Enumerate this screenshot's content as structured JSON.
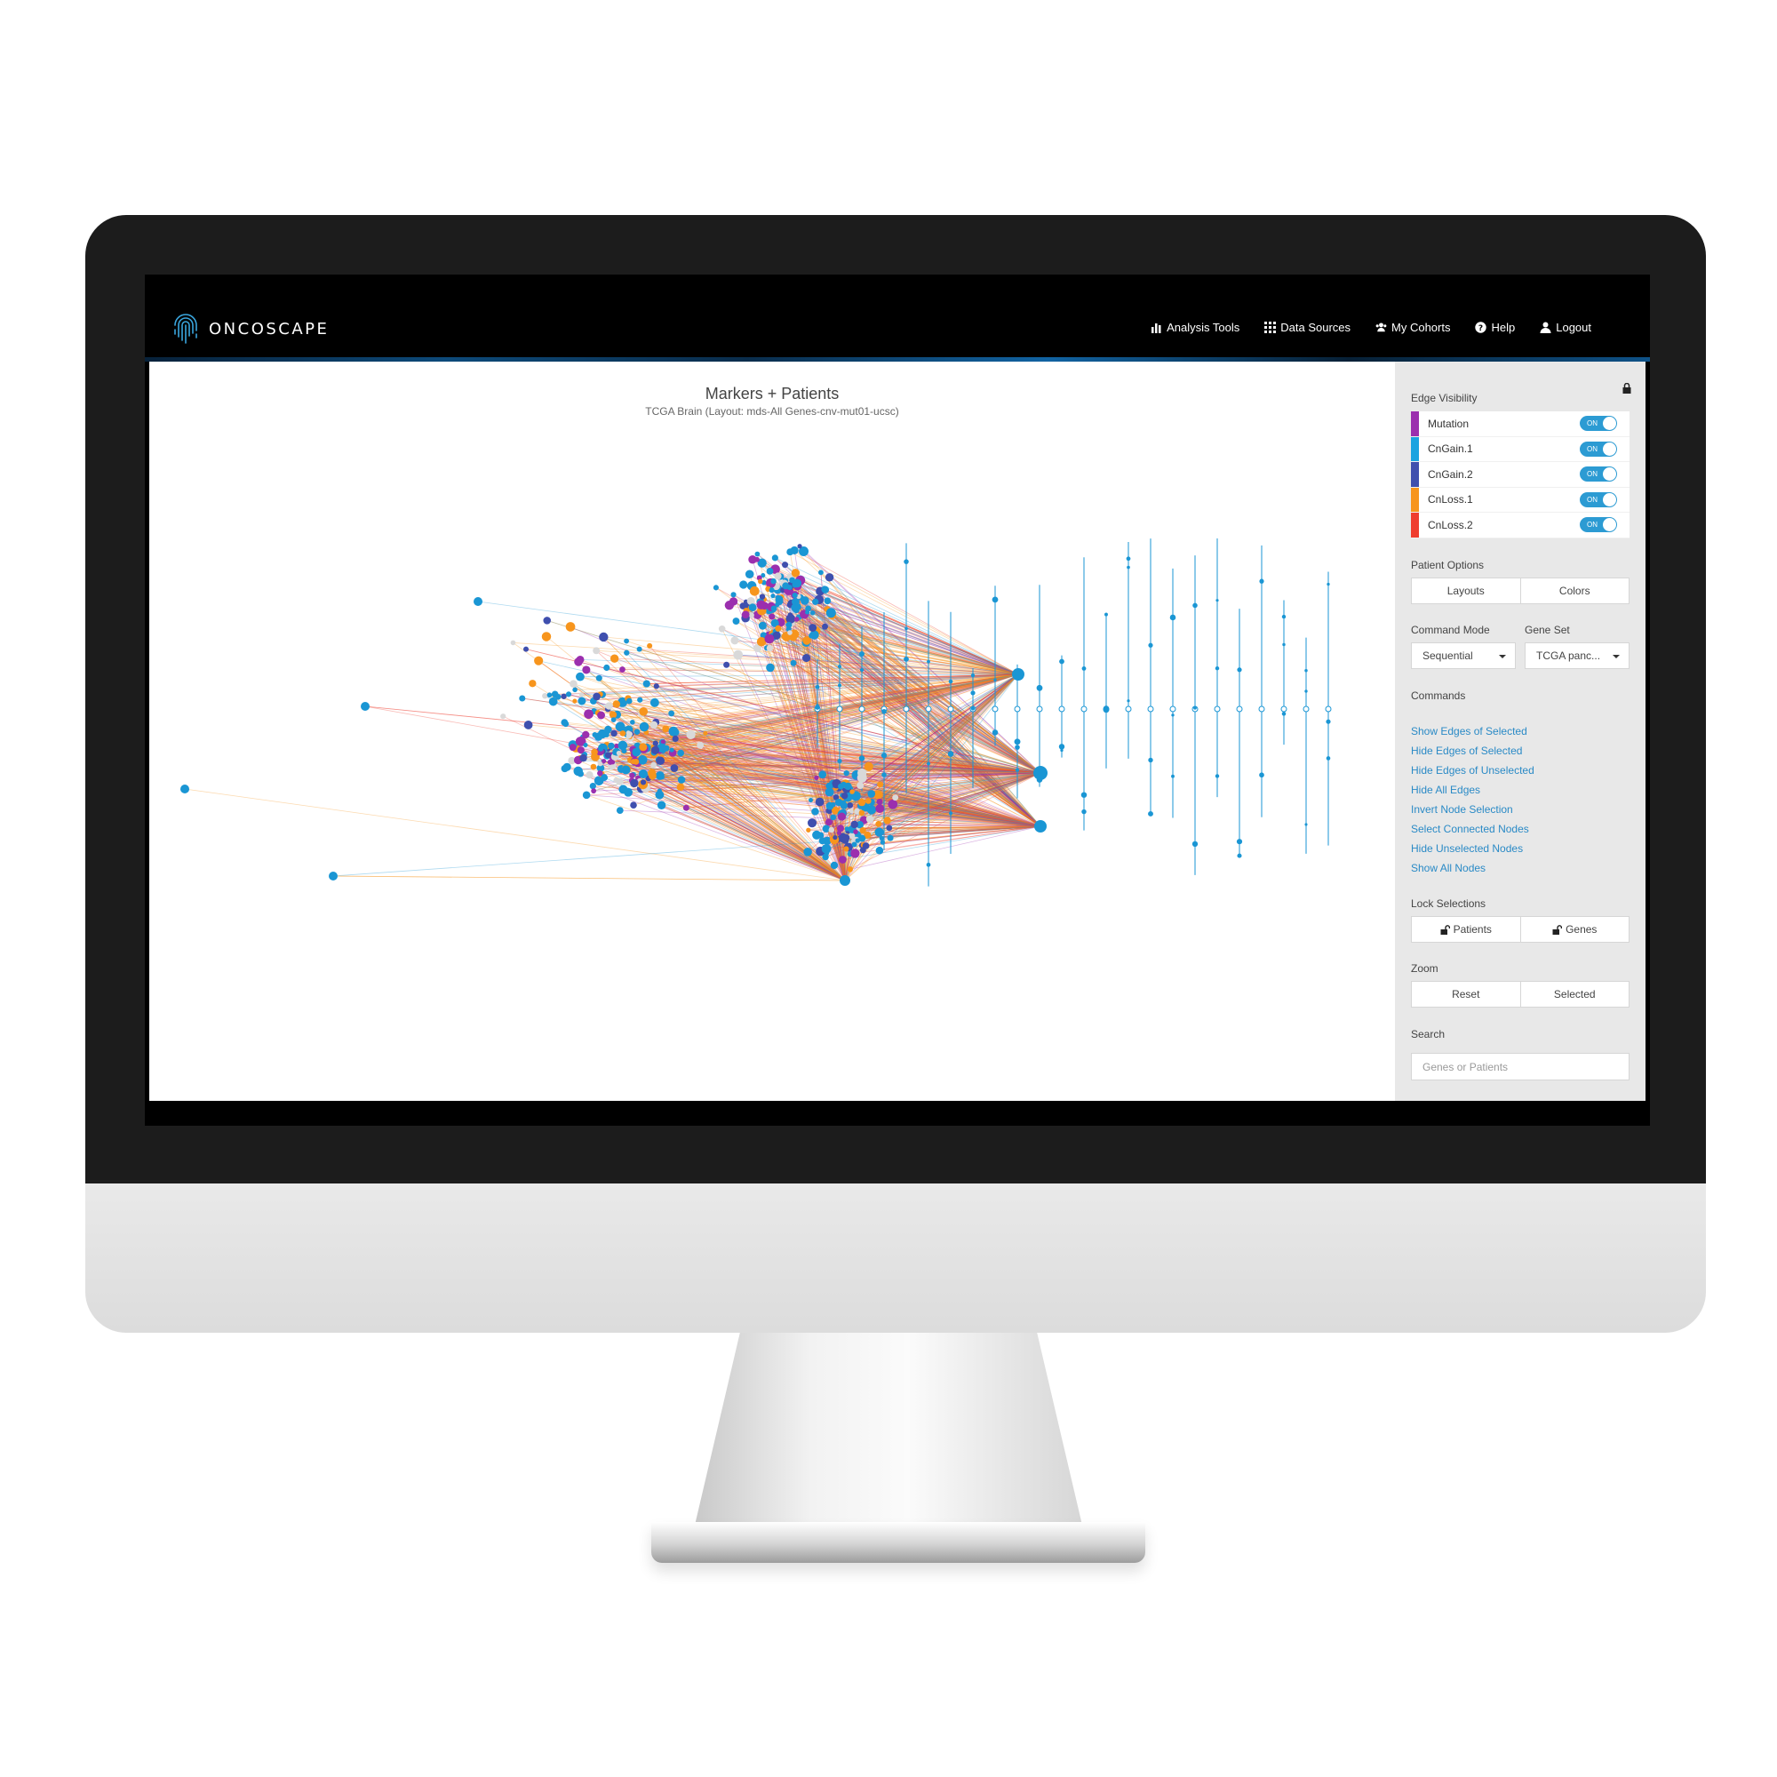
{
  "app": {
    "brand": "ONCOSCAPE",
    "nav": [
      {
        "label": "Analysis Tools",
        "icon": "bar-chart-icon"
      },
      {
        "label": "Data Sources",
        "icon": "grid-icon"
      },
      {
        "label": "My Cohorts",
        "icon": "users-icon"
      },
      {
        "label": "Help",
        "icon": "question-circle-icon"
      },
      {
        "label": "Logout",
        "icon": "user-icon"
      }
    ]
  },
  "chart": {
    "title": "Markers + Patients",
    "subtitle": "TCGA Brain (Layout: mds-All Genes-cnv-mut01-ucsc)"
  },
  "sidebar": {
    "edge_visibility": {
      "label": "Edge Visibility",
      "items": [
        {
          "name": "Mutation",
          "color": "#9b2fae",
          "state": "ON"
        },
        {
          "name": "CnGain.1",
          "color": "#1aa3e0",
          "state": "ON"
        },
        {
          "name": "CnGain.2",
          "color": "#3f4fae",
          "state": "ON"
        },
        {
          "name": "CnLoss.1",
          "color": "#f7951d",
          "state": "ON"
        },
        {
          "name": "CnLoss.2",
          "color": "#ef3d2f",
          "state": "ON"
        }
      ]
    },
    "patient_options": {
      "label": "Patient Options",
      "buttons": [
        "Layouts",
        "Colors"
      ]
    },
    "command_mode": {
      "label": "Command Mode",
      "value": "Sequential"
    },
    "gene_set": {
      "label": "Gene Set",
      "value": "TCGA panc..."
    },
    "commands": {
      "label": "Commands",
      "items": [
        "Show Edges of Selected",
        "Hide Edges of Selected",
        "Hide Edges of Unselected",
        "Hide All Edges",
        "Invert Node Selection",
        "Select Connected Nodes",
        "Hide Unselected Nodes",
        "Show All Nodes"
      ]
    },
    "lock_selections": {
      "label": "Lock Selections",
      "buttons": [
        "Patients",
        "Genes"
      ]
    },
    "zoom": {
      "label": "Zoom",
      "buttons": [
        "Reset",
        "Selected"
      ]
    },
    "search": {
      "label": "Search",
      "placeholder": "Genes or Patients"
    }
  },
  "colors": {
    "accent": "#2c9bd3",
    "node_blue": "#1a96d4",
    "node_purple": "#9b2fae",
    "node_indigo": "#3f4fae",
    "edge_orange": "#f7951d",
    "edge_red": "#ef3d2f",
    "node_gray": "#d9d9d9"
  }
}
